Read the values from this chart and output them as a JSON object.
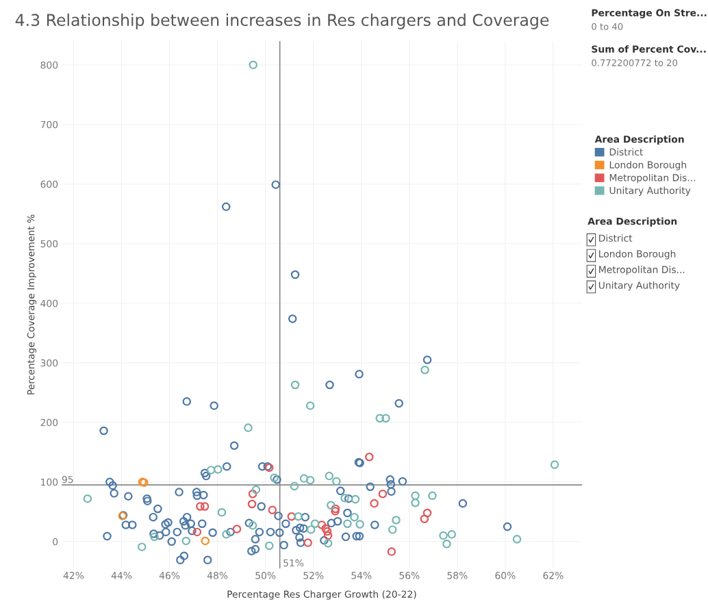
{
  "chart_data": {
    "type": "scatter",
    "title": "4.3 Relationship between increases in Res chargers and Coverage",
    "xlabel": "Percentage Res Charger Growth (20-22)",
    "ylabel": "Percentage Coverage Improvement %",
    "legend_title": "Area Description",
    "legend": "right",
    "marker": "circle",
    "grid": true,
    "xlim": [
      41.5,
      63.2
    ],
    "ylim": [
      -45,
      840
    ],
    "xticks": [
      {
        "value": 42,
        "label": "42%"
      },
      {
        "value": 44,
        "label": "44%"
      },
      {
        "value": 46,
        "label": "46%"
      },
      {
        "value": 48,
        "label": "48%"
      },
      {
        "value": 50,
        "label": "50%"
      },
      {
        "value": 52,
        "label": "52%"
      },
      {
        "value": 54,
        "label": "54%"
      },
      {
        "value": 56,
        "label": "56%"
      },
      {
        "value": 58,
        "label": "58%"
      },
      {
        "value": 60,
        "label": "60%"
      },
      {
        "value": 62,
        "label": "62%"
      }
    ],
    "yticks": [
      0,
      100,
      200,
      300,
      400,
      500,
      600,
      700,
      800
    ],
    "ref_lines": [
      {
        "axis": "x",
        "value": 50.6,
        "label": "51%",
        "color": "#888888"
      },
      {
        "axis": "y",
        "value": 95,
        "label": "95",
        "color": "#888888"
      }
    ],
    "annotations": [
      "Percentage On Stre...",
      "0 to 40",
      "Sum of Percent Cov...",
      "0.772200772 to 20",
      "Area Description",
      "District",
      "London Borough",
      "Metropolitan Dis...",
      "Unitary Authority"
    ],
    "series": [
      {
        "name": "District",
        "color": "#4e79a7",
        "x": [
          50.43,
          48.36,
          51.24,
          51.13,
          56.75,
          53.91,
          52.68,
          46.72,
          47.86,
          55.57,
          43.26,
          48.7,
          48.39,
          47.47,
          47.53,
          43.51,
          43.63,
          43.69,
          44.28,
          45.06,
          45.08,
          46.4,
          47.13,
          47.15,
          47.42,
          45.51,
          44.07,
          45.32,
          44.18,
          44.45,
          45.83,
          45.94,
          46.73,
          46.59,
          46.89,
          47.36,
          46.66,
          46.94,
          46.32,
          45.34,
          45.59,
          45.85,
          47.8,
          48.54,
          43.4,
          46.09,
          46.61,
          46.45,
          47.59,
          49.87,
          50.09,
          53.89,
          53.94,
          50.48,
          55.2,
          55.72,
          55.23,
          54.37,
          53.13,
          55.25,
          53.47,
          49.83,
          50.54,
          51.66,
          53.42,
          50.85,
          52.75,
          53.01,
          54.56,
          49.32,
          49.75,
          50.21,
          50.59,
          51.28,
          51.44,
          51.59,
          52.45,
          51.42,
          51.47,
          49.58,
          50.77,
          49.42,
          49.58,
          53.35,
          53.8,
          53.92,
          58.23,
          60.09
        ],
        "values": [
          599,
          562,
          448,
          374,
          305,
          281,
          263,
          235,
          228,
          232,
          186,
          161,
          126,
          115,
          110,
          100,
          94,
          81,
          76,
          72,
          68,
          83,
          83,
          77,
          78,
          55,
          44,
          41,
          28,
          28,
          29,
          32,
          41,
          34,
          30,
          30,
          27,
          18,
          16,
          13,
          10,
          16,
          15,
          16,
          9,
          0,
          -24,
          -31,
          -31,
          126,
          126,
          133,
          132,
          104,
          104,
          101,
          96,
          92,
          85,
          84,
          72,
          59,
          43,
          41,
          48,
          30,
          31,
          34,
          28,
          31,
          16,
          16,
          15,
          19,
          23,
          22,
          2,
          7,
          -2,
          4,
          -6,
          -16,
          -13,
          8,
          9,
          9,
          64,
          25
        ]
      },
      {
        "name": "London Borough",
        "color": "#f28e2b",
        "x": [
          44.87,
          44.94,
          44.04,
          47.49
        ],
        "values": [
          100,
          99,
          43,
          1
        ]
      },
      {
        "name": "Metropolitan Dis...",
        "color": "#e15759",
        "x": [
          47.28,
          47.47,
          47.15,
          48.81,
          50.16,
          54.33,
          49.47,
          54.89,
          49.44,
          54.54,
          52.92,
          52.91,
          50.29,
          51.09,
          52.35,
          52.51,
          52.58,
          52.61,
          51.77,
          55.26,
          56.75,
          56.63
        ],
        "values": [
          59,
          59,
          16,
          21,
          124,
          142,
          80,
          80,
          63,
          64,
          55,
          51,
          53,
          42,
          28,
          22,
          17,
          10,
          -2,
          -17,
          48,
          38
        ]
      },
      {
        "name": "Unitary Authority",
        "color": "#76b7b2",
        "x": [
          49.49,
          56.65,
          51.24,
          51.87,
          48.02,
          47.73,
          42.58,
          48.18,
          45.37,
          48.37,
          46.69,
          44.85,
          54.77,
          55.02,
          49.28,
          50.37,
          51.61,
          51.87,
          52.66,
          52.96,
          51.21,
          49.61,
          53.31,
          53.75,
          52.73,
          51.37,
          53.71,
          52.07,
          53.42,
          53.94,
          55.45,
          55.3,
          49.47,
          51.9,
          52.61,
          50.16,
          62.06,
          56.25,
          56.25,
          56.96,
          57.42,
          57.77,
          57.56,
          60.49
        ],
        "values": [
          800,
          288,
          263,
          228,
          121,
          120,
          72,
          49,
          8,
          12,
          1,
          -9,
          207,
          207,
          191,
          107,
          106,
          103,
          110,
          101,
          93,
          87,
          73,
          71,
          61,
          42,
          41,
          30,
          30,
          29,
          36,
          20,
          27,
          20,
          -3,
          -7,
          129,
          77,
          65,
          77,
          10,
          12,
          -4,
          4
        ]
      }
    ]
  }
}
